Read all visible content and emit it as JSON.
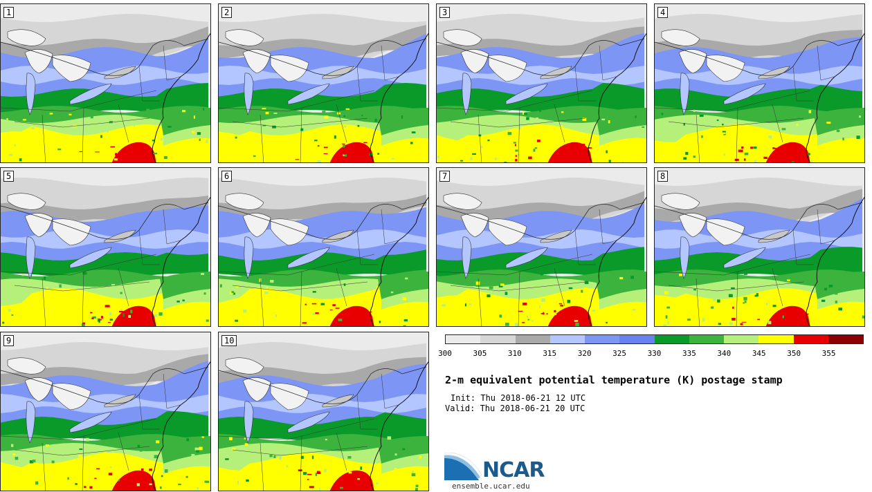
{
  "figure": {
    "title": "2-m equivalent potential temperature (K) postage stamp",
    "init": "Init: Thu 2018-06-21 12 UTC",
    "valid": "Valid: Thu 2018-06-21 20 UTC",
    "website": "ensemble.ucar.edu",
    "logo_text": "NCAR"
  },
  "members": [
    "1",
    "2",
    "3",
    "4",
    "5",
    "6",
    "7",
    "8",
    "9",
    "10"
  ],
  "colorbar": {
    "ticks": [
      "300",
      "305",
      "310",
      "315",
      "320",
      "325",
      "330",
      "335",
      "340",
      "345",
      "350",
      "355"
    ],
    "colors": [
      "#ebebeb",
      "#d6d6d6",
      "#a9a9a9",
      "#b3c6ff",
      "#7d96f5",
      "#6a82f0",
      "#0a9a2a",
      "#3cb33c",
      "#b5f07a",
      "#ffff00",
      "#e80000",
      "#8a0000"
    ]
  },
  "map_colors": {
    "light_gray": "#ebebeb",
    "mid_gray": "#d6d6d6",
    "dark_gray": "#a9a9a9",
    "pale_blue": "#b3c6ff",
    "blue": "#7d96f5",
    "dark_green": "#0a9a2a",
    "green": "#3cb33c",
    "light_green": "#b5f07a",
    "yellow": "#ffff00",
    "red": "#e80000",
    "lake": "#f2f2f2"
  }
}
